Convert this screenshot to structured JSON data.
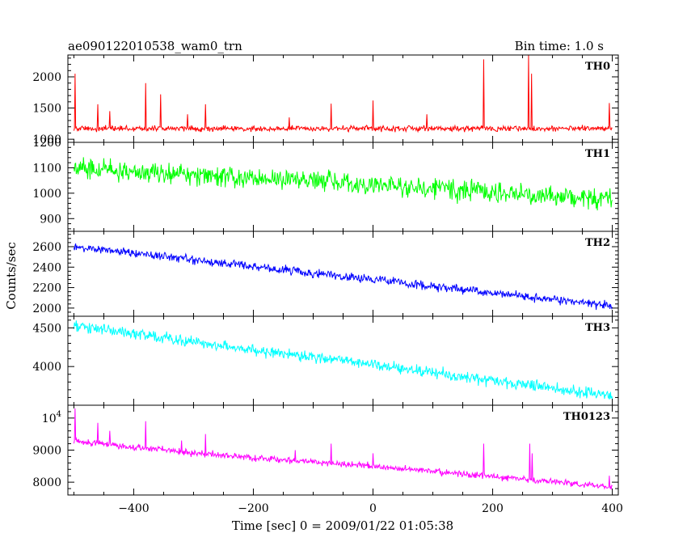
{
  "chart_data": {
    "type": "line",
    "title": "ae090122010538_wam0_trn",
    "subtitle": "Bin time: 1.0 s",
    "xlabel": "Time [sec] 0 = 2009/01/22 01:05:38",
    "ylabel": "Counts/sec",
    "xlim": [
      -510,
      410
    ],
    "xticks": [
      -400,
      -200,
      0,
      200,
      400
    ],
    "grid": false,
    "panels": [
      {
        "name": "TH0",
        "color": "#ff0000",
        "ylim": [
          950,
          2350
        ],
        "yticks": [
          {
            "v": 1000,
            "t": "1000"
          },
          {
            "v": 1500,
            "t": "1500"
          },
          {
            "v": 2000,
            "t": "2000"
          }
        ],
        "trend": [
          [
            -500,
            1170
          ],
          [
            400,
            1170
          ]
        ],
        "noise": 45,
        "spikes": [
          [
            -498,
            2050
          ],
          [
            -460,
            1560
          ],
          [
            -440,
            1450
          ],
          [
            -380,
            1900
          ],
          [
            -355,
            1720
          ],
          [
            -310,
            1400
          ],
          [
            -280,
            1560
          ],
          [
            -140,
            1350
          ],
          [
            -70,
            1570
          ],
          [
            0,
            1620
          ],
          [
            90,
            1400
          ],
          [
            185,
            2280
          ],
          [
            260,
            2350
          ],
          [
            265,
            2050
          ],
          [
            395,
            1580
          ]
        ]
      },
      {
        "name": "TH1",
        "color": "#00ff00",
        "ylim": [
          850,
          1200
        ],
        "yticks": [
          {
            "v": 900,
            "t": "900"
          },
          {
            "v": 1000,
            "t": "1000"
          },
          {
            "v": 1100,
            "t": "1100"
          },
          {
            "v": 1200,
            "t": "1200"
          }
        ],
        "trend": [
          [
            -500,
            1100
          ],
          [
            400,
            975
          ]
        ],
        "noise": 40,
        "spikes": []
      },
      {
        "name": "TH2",
        "color": "#0000ff",
        "ylim": [
          1920,
          2750
        ],
        "yticks": [
          {
            "v": 2000,
            "t": "2000"
          },
          {
            "v": 2200,
            "t": "2200"
          },
          {
            "v": 2400,
            "t": "2400"
          },
          {
            "v": 2600,
            "t": "2600"
          }
        ],
        "trend": [
          [
            -500,
            2600
          ],
          [
            400,
            2020
          ]
        ],
        "noise": 40,
        "spikes": []
      },
      {
        "name": "TH3",
        "color": "#00ffff",
        "ylim": [
          3500,
          4650
        ],
        "yticks": [
          {
            "v": 4000,
            "t": "4000"
          },
          {
            "v": 4500,
            "t": "4500"
          }
        ],
        "trend": [
          [
            -500,
            4520
          ],
          [
            400,
            3620
          ]
        ],
        "noise": 70,
        "spikes": []
      },
      {
        "name": "TH0123",
        "color": "#ff00ff",
        "ylim": [
          7600,
          10400
        ],
        "yticks": [
          {
            "v": 8000,
            "t": "8000"
          },
          {
            "v": 9000,
            "t": "9000"
          },
          {
            "v": 10000,
            "t": "10",
            "sup": "4"
          }
        ],
        "trend": [
          [
            -500,
            9280
          ],
          [
            -300,
            8900
          ],
          [
            0,
            8500
          ],
          [
            400,
            7850
          ]
        ],
        "noise": 95,
        "spikes": [
          [
            -498,
            10300
          ],
          [
            -460,
            9850
          ],
          [
            -440,
            9600
          ],
          [
            -380,
            9900
          ],
          [
            -320,
            9300
          ],
          [
            -280,
            9500
          ],
          [
            -130,
            9000
          ],
          [
            -70,
            9200
          ],
          [
            0,
            8900
          ],
          [
            185,
            9200
          ],
          [
            262,
            9200
          ],
          [
            266,
            8900
          ],
          [
            395,
            8200
          ]
        ]
      }
    ]
  }
}
